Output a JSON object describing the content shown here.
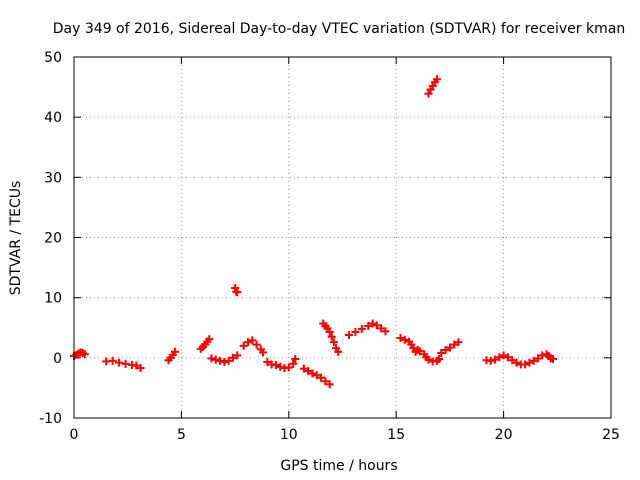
{
  "chart_data": {
    "type": "scatter",
    "title": "Day 349 of 2016, Sidereal Day-to-day VTEC variation (SDTVAR) for receiver kman",
    "xlabel": "GPS time / hours",
    "ylabel": "SDTVAR / TECUs",
    "xlim": [
      0,
      25
    ],
    "ylim": [
      -10,
      50
    ],
    "xticks": [
      0,
      5,
      10,
      15,
      20,
      25
    ],
    "yticks": [
      -10,
      0,
      10,
      20,
      30,
      40,
      50
    ],
    "xtick_labels": [
      "0",
      "5",
      "10",
      "15",
      "20",
      "25"
    ],
    "ytick_labels": [
      "-10",
      "0",
      "10",
      "20",
      "30",
      "40",
      "50"
    ],
    "grid": true,
    "marker": "+",
    "series_color": "#ff0000",
    "series": [
      {
        "name": "SDTVAR",
        "points": [
          [
            0.0,
            0.3
          ],
          [
            0.1,
            0.5
          ],
          [
            0.2,
            0.7
          ],
          [
            0.3,
            0.9
          ],
          [
            0.4,
            0.8
          ],
          [
            0.5,
            0.6
          ],
          [
            1.5,
            -0.6
          ],
          [
            1.8,
            -0.5
          ],
          [
            2.1,
            -0.8
          ],
          [
            2.4,
            -1.0
          ],
          [
            2.7,
            -1.2
          ],
          [
            2.9,
            -1.3
          ],
          [
            3.1,
            -1.7
          ],
          [
            4.4,
            -0.4
          ],
          [
            4.5,
            0.0
          ],
          [
            4.6,
            0.5
          ],
          [
            4.7,
            1.0
          ],
          [
            5.9,
            1.5
          ],
          [
            6.0,
            1.8
          ],
          [
            6.1,
            2.2
          ],
          [
            6.2,
            2.7
          ],
          [
            6.3,
            3.1
          ],
          [
            6.4,
            -0.1
          ],
          [
            6.6,
            -0.3
          ],
          [
            6.8,
            -0.5
          ],
          [
            7.0,
            -0.7
          ],
          [
            7.2,
            -0.5
          ],
          [
            7.4,
            0.0
          ],
          [
            7.6,
            0.4
          ],
          [
            7.5,
            11.6
          ],
          [
            7.55,
            11.0
          ],
          [
            7.6,
            10.9
          ],
          [
            7.9,
            2.0
          ],
          [
            8.1,
            2.6
          ],
          [
            8.3,
            2.9
          ],
          [
            8.5,
            2.2
          ],
          [
            8.7,
            1.4
          ],
          [
            8.8,
            0.9
          ],
          [
            9.0,
            -0.7
          ],
          [
            9.2,
            -1.1
          ],
          [
            9.4,
            -1.2
          ],
          [
            9.6,
            -1.5
          ],
          [
            9.8,
            -1.7
          ],
          [
            10.0,
            -1.6
          ],
          [
            10.2,
            -1.0
          ],
          [
            10.3,
            -0.2
          ],
          [
            10.7,
            -1.8
          ],
          [
            10.9,
            -2.2
          ],
          [
            11.1,
            -2.6
          ],
          [
            11.3,
            -2.9
          ],
          [
            11.5,
            -3.3
          ],
          [
            11.7,
            -3.9
          ],
          [
            11.9,
            -4.4
          ],
          [
            11.6,
            5.7
          ],
          [
            11.7,
            5.3
          ],
          [
            11.8,
            4.9
          ],
          [
            11.9,
            4.3
          ],
          [
            12.0,
            3.5
          ],
          [
            12.1,
            2.6
          ],
          [
            12.2,
            1.6
          ],
          [
            12.3,
            1.0
          ],
          [
            12.8,
            3.8
          ],
          [
            13.1,
            4.3
          ],
          [
            13.4,
            4.8
          ],
          [
            13.7,
            5.3
          ],
          [
            13.9,
            5.7
          ],
          [
            14.1,
            5.4
          ],
          [
            14.3,
            4.9
          ],
          [
            14.5,
            4.4
          ],
          [
            15.2,
            3.3
          ],
          [
            15.4,
            3.0
          ],
          [
            15.6,
            2.7
          ],
          [
            15.7,
            2.2
          ],
          [
            15.8,
            1.6
          ],
          [
            15.9,
            1.0
          ],
          [
            16.0,
            1.3
          ],
          [
            16.1,
            1.1
          ],
          [
            16.3,
            0.6
          ],
          [
            16.4,
            0.1
          ],
          [
            16.5,
            -0.3
          ],
          [
            16.7,
            -0.6
          ],
          [
            16.9,
            -0.5
          ],
          [
            17.0,
            -0.2
          ],
          [
            16.5,
            43.9
          ],
          [
            16.6,
            44.6
          ],
          [
            16.7,
            45.2
          ],
          [
            16.8,
            45.8
          ],
          [
            16.9,
            46.3
          ],
          [
            17.1,
            0.8
          ],
          [
            17.3,
            1.3
          ],
          [
            17.5,
            1.7
          ],
          [
            17.7,
            2.2
          ],
          [
            17.9,
            2.6
          ],
          [
            19.2,
            -0.4
          ],
          [
            19.4,
            -0.5
          ],
          [
            19.6,
            -0.3
          ],
          [
            19.8,
            0.1
          ],
          [
            20.0,
            0.4
          ],
          [
            20.2,
            0.1
          ],
          [
            20.4,
            -0.4
          ],
          [
            20.6,
            -0.8
          ],
          [
            20.8,
            -1.1
          ],
          [
            21.0,
            -1.1
          ],
          [
            21.2,
            -0.8
          ],
          [
            21.4,
            -0.5
          ],
          [
            21.6,
            -0.1
          ],
          [
            21.8,
            0.4
          ],
          [
            22.0,
            0.6
          ],
          [
            22.1,
            0.3
          ],
          [
            22.2,
            -0.1
          ],
          [
            22.3,
            -0.2
          ]
        ]
      }
    ]
  }
}
